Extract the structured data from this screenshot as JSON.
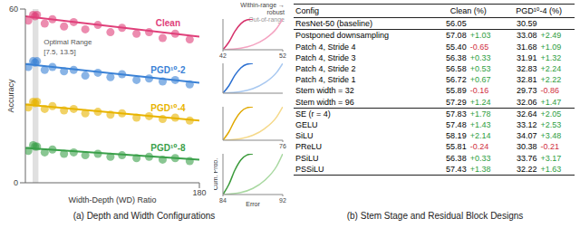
{
  "chart_data": [
    {
      "type": "scatter",
      "x_label": "Width-Depth (WD) Ratio",
      "y_label": "Accuracy",
      "xlim": [
        0,
        180
      ],
      "xticks": [
        180
      ],
      "ylim": [
        0,
        60
      ],
      "yticks": [
        0,
        60
      ],
      "grid": false,
      "optimal_range": [
        7.5,
        13.5
      ],
      "annotations": [
        "Optimal Range",
        "[7.5, 13.5]"
      ],
      "series": [
        {
          "name": "Clean",
          "color": "#e0407a",
          "marker": "circle",
          "x": [
            3,
            8,
            10,
            12,
            20,
            28,
            40,
            50,
            62,
            75,
            88,
            100,
            115,
            128,
            142,
            155,
            170
          ],
          "values": [
            56,
            58,
            57.5,
            58,
            55,
            56.5,
            54,
            55.5,
            53,
            54.5,
            52,
            53.5,
            51.5,
            52,
            50,
            51.5,
            49.5
          ],
          "trend": {
            "x": [
              0,
              180
            ],
            "values": [
              57.5,
              50.5
            ]
          }
        },
        {
          "name": "PGD¹⁰-2",
          "color": "#3b82d6",
          "marker": "circle",
          "x": [
            3,
            8,
            10,
            12,
            20,
            28,
            40,
            50,
            62,
            75,
            88,
            100,
            115,
            128,
            142,
            155,
            170
          ],
          "values": [
            40,
            42,
            41.5,
            42,
            39,
            40,
            38.5,
            39,
            37,
            38,
            36.5,
            37.5,
            35.5,
            36,
            35,
            35.5,
            34
          ],
          "trend": {
            "x": [
              0,
              180
            ],
            "values": [
              41,
              34.5
            ]
          }
        },
        {
          "name": "PGD¹⁰-4",
          "color": "#e8b400",
          "marker": "circle",
          "x": [
            3,
            8,
            10,
            12,
            20,
            28,
            40,
            50,
            62,
            75,
            88,
            100,
            115,
            128,
            142,
            155,
            170
          ],
          "values": [
            26,
            28,
            27.5,
            28,
            25.5,
            26.5,
            25,
            25.5,
            24,
            24.5,
            23.5,
            24,
            22.5,
            23,
            22,
            22.5,
            21.5
          ],
          "trend": {
            "x": [
              0,
              180
            ],
            "values": [
              27,
              21.5
            ]
          }
        },
        {
          "name": "PGD¹⁰-8",
          "color": "#3aa04a",
          "marker": "circle",
          "x": [
            3,
            8,
            10,
            12,
            20,
            28,
            40,
            50,
            62,
            75,
            88,
            100,
            115,
            128,
            142,
            155,
            170
          ],
          "values": [
            11,
            13,
            12.5,
            12.5,
            10.5,
            11.5,
            10,
            10.5,
            9.5,
            10,
            9,
            9.5,
            8.5,
            9,
            8,
            8.5,
            7.5
          ],
          "trend": {
            "x": [
              0,
              180
            ],
            "values": [
              12,
              8
            ]
          }
        }
      ]
    },
    {
      "type": "line",
      "xlim": [
        42,
        52
      ],
      "xticks": [
        42,
        52
      ],
      "ylim": [
        0,
        1
      ],
      "tick_labels": "x",
      "annotations": [
        "Within-range → robust",
        "Out-of-range"
      ],
      "series": [
        {
          "color": "#d6336c",
          "x": [
            42,
            43,
            44,
            45,
            46,
            47
          ],
          "values": [
            0,
            0.25,
            0.6,
            0.85,
            0.97,
            1
          ]
        },
        {
          "color": "#f4a3c1",
          "x": [
            42,
            45,
            47,
            49,
            51,
            52
          ],
          "values": [
            0,
            0.05,
            0.15,
            0.35,
            0.7,
            1
          ]
        }
      ]
    },
    {
      "type": "line",
      "xlim": [
        58,
        68
      ],
      "ylim": [
        0,
        1
      ],
      "tick_labels": false,
      "series": [
        {
          "color": "#2a6fd1",
          "x": [
            58,
            59,
            60,
            61,
            62,
            63
          ],
          "values": [
            0,
            0.25,
            0.6,
            0.85,
            0.97,
            1
          ]
        },
        {
          "color": "#a8c8f0",
          "x": [
            58,
            61,
            63,
            65,
            67,
            68
          ],
          "values": [
            0,
            0.05,
            0.15,
            0.35,
            0.7,
            1
          ]
        }
      ]
    },
    {
      "type": "line",
      "xlim": [
        66,
        76
      ],
      "xticks": [
        76
      ],
      "ylim": [
        0,
        1
      ],
      "tick_labels": "x",
      "series": [
        {
          "color": "#e0a800",
          "x": [
            66,
            67,
            68,
            69,
            70,
            71
          ],
          "values": [
            0,
            0.25,
            0.6,
            0.85,
            0.97,
            1
          ]
        },
        {
          "color": "#f5d98a",
          "x": [
            66,
            69,
            71,
            73,
            75,
            76
          ],
          "values": [
            0,
            0.05,
            0.15,
            0.35,
            0.7,
            1
          ]
        }
      ]
    },
    {
      "type": "line",
      "x_label": "Error",
      "y_label": "Cum. Prob.",
      "xlim": [
        84,
        92
      ],
      "xticks": [
        84,
        92
      ],
      "ylim": [
        0,
        1
      ],
      "tick_labels": "x",
      "series": [
        {
          "color": "#3a9a3a",
          "x": [
            84,
            84.8,
            85.6,
            86.4,
            87.2,
            88
          ],
          "values": [
            0,
            0.25,
            0.6,
            0.85,
            0.97,
            1
          ]
        },
        {
          "color": "#a8d8a0",
          "x": [
            84,
            86.4,
            88,
            89.6,
            91.2,
            92
          ],
          "values": [
            0,
            0.05,
            0.15,
            0.35,
            0.7,
            1
          ]
        }
      ]
    }
  ],
  "table": {
    "header": [
      "Config",
      "Clean (%)",
      "PGD¹⁰-4 (%)"
    ],
    "groups": [
      [
        {
          "config": "ResNet-50 (baseline)",
          "clean": "56.05",
          "pgd": "30.59"
        }
      ],
      [
        {
          "config": "Postponed downsampling",
          "clean": "57.08",
          "clean_delta": "+1.03",
          "pgd": "33.08",
          "pgd_delta": "+2.49"
        },
        {
          "config": "Patch 4, Stride 4",
          "clean": "55.40",
          "clean_delta": "-0.65",
          "pgd": "31.68",
          "pgd_delta": "+1.09"
        },
        {
          "config": "Patch 4, Stride 3",
          "clean": "56.38",
          "clean_delta": "+0.33",
          "pgd": "31.91",
          "pgd_delta": "+1.32"
        },
        {
          "config": "Patch 4, Stride 2",
          "clean": "56.58",
          "clean_delta": "+0.53",
          "pgd": "32.83",
          "pgd_delta": "+2.24"
        },
        {
          "config": "Patch 4, Stride 1",
          "clean": "56.72",
          "clean_delta": "+0.67",
          "pgd": "32.81",
          "pgd_delta": "+2.22"
        },
        {
          "config": "Stem width = 32",
          "clean": "55.89",
          "clean_delta": "-0.16",
          "pgd": "29.73",
          "pgd_delta": "-0.86"
        },
        {
          "config": "Stem width = 96",
          "clean": "57.29",
          "clean_delta": "+1.24",
          "pgd": "32.06",
          "pgd_delta": "+1.47"
        }
      ],
      [
        {
          "config": "SE (r = 4)",
          "clean": "57.83",
          "clean_delta": "+1.78",
          "pgd": "32.64",
          "pgd_delta": "+2.05"
        },
        {
          "config": "GELU",
          "clean": "57.48",
          "clean_delta": "+1.43",
          "pgd": "33.12",
          "pgd_delta": "+2.53"
        },
        {
          "config": "SiLU",
          "clean": "58.19",
          "clean_delta": "+2.14",
          "pgd": "34.07",
          "pgd_delta": "+3.48"
        },
        {
          "config": "PReLU",
          "clean": "55.81",
          "clean_delta": "-0.24",
          "pgd": "30.38",
          "pgd_delta": "-0.21"
        },
        {
          "config": "PSiLU",
          "clean": "56.38",
          "clean_delta": "+0.33",
          "pgd": "33.76",
          "pgd_delta": "+3.17"
        },
        {
          "config": "PSSiLU",
          "clean": "57.43",
          "clean_delta": "+1.38",
          "pgd": "32.22",
          "pgd_delta": "+1.63"
        }
      ]
    ]
  },
  "captions": [
    "(a) Depth and Width Configurations",
    "(b) Stem Stage and Residual Block Designs"
  ]
}
